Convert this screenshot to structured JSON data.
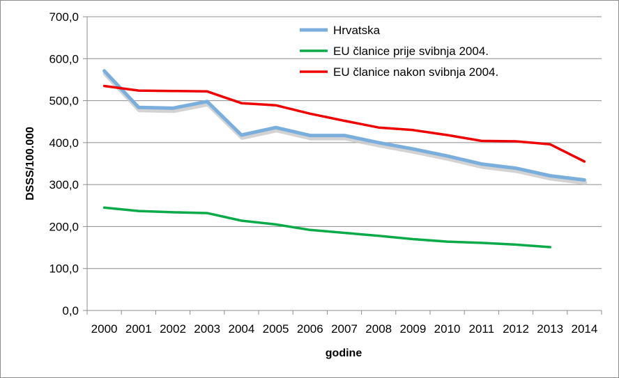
{
  "chart_data": {
    "type": "line",
    "title": "",
    "xlabel": "godine",
    "ylabel": "DSSS/100.000",
    "ylim": [
      0,
      700
    ],
    "yticks": [
      "0,0",
      "100,0",
      "200,0",
      "300,0",
      "400,0",
      "500,0",
      "600,0",
      "700,0"
    ],
    "categories": [
      "2000",
      "2001",
      "2002",
      "2003",
      "2004",
      "2005",
      "2006",
      "2007",
      "2008",
      "2009",
      "2010",
      "2011",
      "2012",
      "2013",
      "2014"
    ],
    "grid": "horizontal",
    "legend_position": "top-right",
    "series": [
      {
        "name": "Hrvatska",
        "color": "#7aaedc",
        "values": [
          571,
          484,
          482,
          498,
          418,
          436,
          417,
          417,
          400,
          385,
          368,
          349,
          339,
          321,
          311
        ]
      },
      {
        "name": "EU članice prije svibnja 2004.",
        "color": "#0aaa48",
        "values": [
          245,
          237,
          234,
          232,
          214,
          205,
          192,
          185,
          178,
          170,
          164,
          161,
          157,
          151,
          null
        ]
      },
      {
        "name": "EU članice nakon svibnja 2004.",
        "color": "#ee0000",
        "values": [
          535,
          524,
          523,
          522,
          494,
          489,
          469,
          452,
          436,
          430,
          418,
          404,
          403,
          396,
          355
        ]
      }
    ]
  }
}
